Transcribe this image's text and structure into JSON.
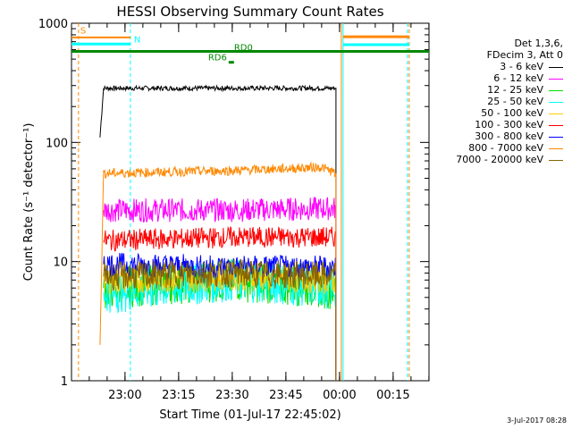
{
  "chart_data": {
    "type": "line",
    "title": "HESSI Observing Summary Count Rates",
    "xlabel": "Start Time (01-Jul-17 22:45:02)",
    "ylabel": "Count Rate (s⁻¹ detector⁻¹)",
    "y_scale": "log",
    "ylim": [
      1,
      1000
    ],
    "y_ticks": [
      1,
      10,
      100,
      1000
    ],
    "y_tick_labels": [
      "1",
      "10",
      "100",
      "1000"
    ],
    "xlim": [
      "22:45:02",
      "00:25:02"
    ],
    "x_ticks": [
      "23:00",
      "23:15",
      "23:30",
      "23:45",
      "00:00",
      "00:15"
    ],
    "x_tick_labels": [
      "23:00",
      "23:15",
      "23:30",
      "23:45",
      "00:00",
      "00:15"
    ],
    "legend_placement": "right",
    "legend_title": [
      "Det 1,3,6,",
      "FDecim 3, Att 0"
    ],
    "series": [
      {
        "name": "3 - 6 keV",
        "color": "#000000",
        "x": [
          "22:53:00",
          "22:54:00",
          "23:30:00",
          "23:59:00"
        ],
        "values": [
          110,
          285,
          285,
          285
        ]
      },
      {
        "name": "6 - 12 keV",
        "color": "#ff00ff",
        "x": [
          "22:54:00",
          "23:30:00",
          "23:59:00"
        ],
        "values": [
          27,
          27,
          28
        ]
      },
      {
        "name": "12 - 25 keV",
        "color": "#00dd00",
        "x": [
          "22:54:00",
          "23:10:00",
          "23:30:00",
          "23:59:00"
        ],
        "values": [
          6,
          6.5,
          7,
          6
        ]
      },
      {
        "name": "25 - 50 keV",
        "color": "#00ffff",
        "x": [
          "22:54:00",
          "23:10:00",
          "23:30:00",
          "23:59:00"
        ],
        "values": [
          5.5,
          6,
          7,
          6
        ]
      },
      {
        "name": "50 - 100 keV",
        "color": "#ffcc00",
        "x": [
          "22:54:00",
          "23:30:00",
          "23:59:00"
        ],
        "values": [
          7,
          7.5,
          7
        ]
      },
      {
        "name": "100 - 300 keV",
        "color": "#ff0000",
        "x": [
          "22:54:00",
          "23:30:00",
          "23:59:00"
        ],
        "values": [
          15,
          16,
          16
        ]
      },
      {
        "name": "300 - 800 keV",
        "color": "#0000ff",
        "x": [
          "22:54:00",
          "23:30:00",
          "23:59:00"
        ],
        "values": [
          9.5,
          9,
          9
        ]
      },
      {
        "name": "800 - 7000 keV",
        "color": "#ff8800",
        "x": [
          "22:53:00",
          "22:54:00",
          "23:30:00",
          "23:55:00",
          "23:59:00"
        ],
        "values": [
          2,
          55,
          58,
          62,
          55
        ]
      },
      {
        "name": "7000 - 20000 keV",
        "color": "#886600",
        "x": [
          "22:54:00",
          "23:30:00",
          "23:59:00"
        ],
        "values": [
          7.5,
          8,
          7.5
        ]
      }
    ],
    "annotations": [
      {
        "text": "S",
        "color": "#ff8800"
      },
      {
        "text": "N",
        "color": "#00ffff"
      },
      {
        "text": "RD0",
        "color": "#008800"
      },
      {
        "text": "RD6",
        "color": "#008800"
      }
    ]
  },
  "date_stamp": "3-Jul-2017 08:28"
}
